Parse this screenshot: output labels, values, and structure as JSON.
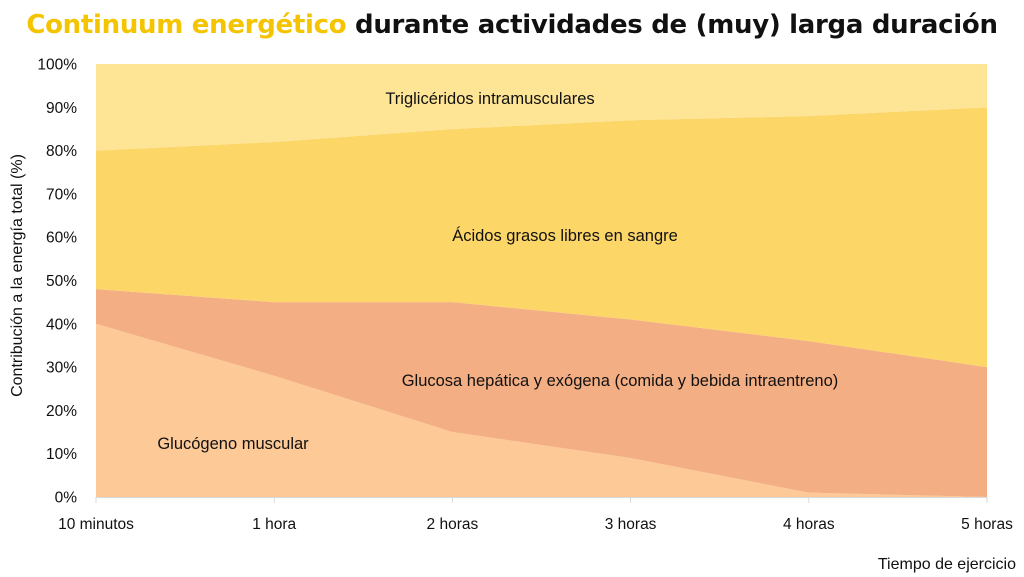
{
  "title": {
    "highlight": "Continuum energético",
    "rest": " durante actividades de (muy) larga duración",
    "highlight_color": "#f4c400",
    "rest_color": "#111111"
  },
  "chart_data": {
    "type": "area",
    "stacked": true,
    "title": "Continuum energético durante actividades de (muy) larga duración",
    "xlabel": "Tiempo de ejercicio",
    "ylabel": "Contribución a la energía total (%)",
    "categories": [
      "10 minutos",
      "1 hora",
      "2 horas",
      "3 horas",
      "4 horas",
      "5 horas"
    ],
    "y_ticks": [
      "0%",
      "10%",
      "20%",
      "30%",
      "40%",
      "50%",
      "60%",
      "70%",
      "80%",
      "90%",
      "100%"
    ],
    "ylim": [
      0,
      100
    ],
    "grid": false,
    "legend": "none",
    "series": [
      {
        "name": "Glucógeno muscular",
        "values": [
          40,
          28,
          15,
          9,
          1,
          0
        ],
        "color": "#fdc997"
      },
      {
        "name": "Glucosa hepática y exógena (comida y bebida intraentreno)",
        "values": [
          8,
          17,
          30,
          32,
          35,
          30
        ],
        "color": "#f4ae83"
      },
      {
        "name": "Ácidos grasos libres en sangre",
        "values": [
          32,
          37,
          40,
          46,
          52,
          60
        ],
        "color": "#fdd668"
      },
      {
        "name": "Triglicéridos intramusculares",
        "values": [
          20,
          18,
          15,
          13,
          12,
          10
        ],
        "color": "#fee596"
      }
    ]
  }
}
